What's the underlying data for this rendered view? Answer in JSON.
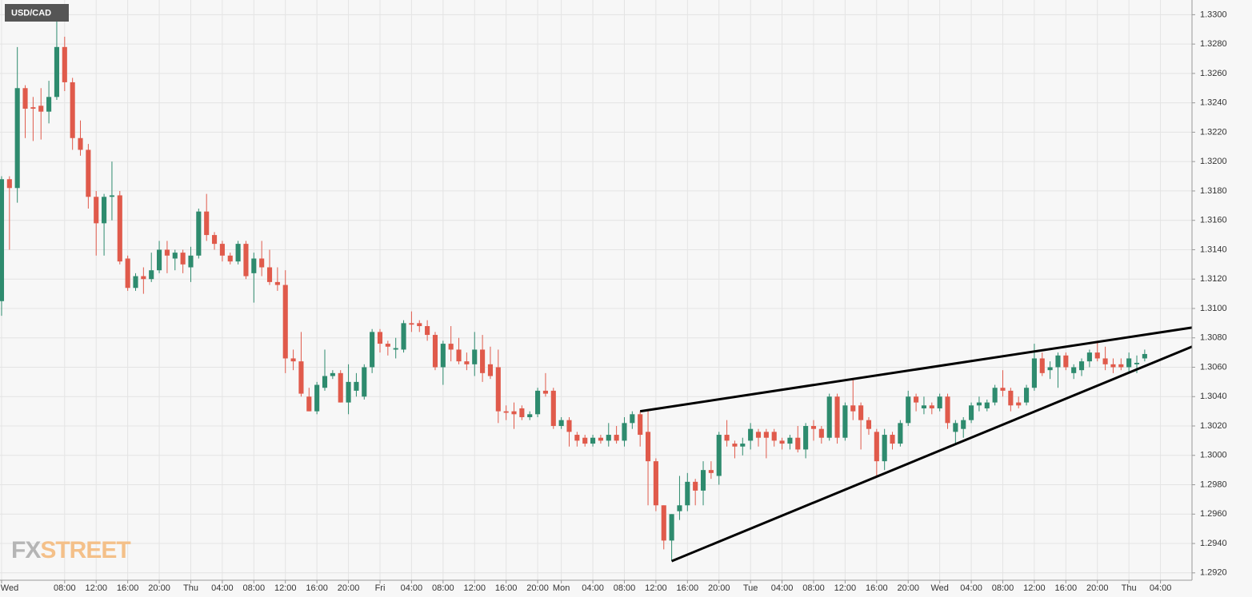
{
  "chart_data": {
    "type": "candlestick",
    "title": "USD/CAD",
    "logo": [
      "FX",
      "STREET"
    ],
    "up_color": "#2e8b6e",
    "down_color": "#e05a4b",
    "grid": true,
    "xlim": [
      -0.2,
      151
    ],
    "ylim": [
      1.2915,
      1.331
    ],
    "xticks": [
      {
        "value": 0,
        "label": "Wed"
      },
      {
        "value": 8,
        "label": "08:00"
      },
      {
        "value": 12,
        "label": "12:00"
      },
      {
        "value": 16,
        "label": "16:00"
      },
      {
        "value": 20,
        "label": "20:00"
      },
      {
        "value": 24,
        "label": "Thu"
      },
      {
        "value": 28,
        "label": "04:00"
      },
      {
        "value": 32,
        "label": "08:00"
      },
      {
        "value": 36,
        "label": "12:00"
      },
      {
        "value": 40,
        "label": "16:00"
      },
      {
        "value": 44,
        "label": "20:00"
      },
      {
        "value": 48,
        "label": "Fri"
      },
      {
        "value": 52,
        "label": "04:00"
      },
      {
        "value": 56,
        "label": "08:00"
      },
      {
        "value": 60,
        "label": "12:00"
      },
      {
        "value": 64,
        "label": "16:00"
      },
      {
        "value": 68,
        "label": "20:00"
      },
      {
        "value": 71,
        "label": "Mon"
      },
      {
        "value": 75,
        "label": "04:00"
      },
      {
        "value": 79,
        "label": "08:00"
      },
      {
        "value": 83,
        "label": "12:00"
      },
      {
        "value": 87,
        "label": "16:00"
      },
      {
        "value": 91,
        "label": "20:00"
      },
      {
        "value": 95,
        "label": "Tue"
      },
      {
        "value": 99,
        "label": "04:00"
      },
      {
        "value": 103,
        "label": "08:00"
      },
      {
        "value": 107,
        "label": "12:00"
      },
      {
        "value": 111,
        "label": "16:00"
      },
      {
        "value": 115,
        "label": "20:00"
      },
      {
        "value": 119,
        "label": "Wed"
      },
      {
        "value": 123,
        "label": "04:00"
      },
      {
        "value": 127,
        "label": "08:00"
      },
      {
        "value": 131,
        "label": "12:00"
      },
      {
        "value": 135,
        "label": "16:00"
      },
      {
        "value": 139,
        "label": "20:00"
      },
      {
        "value": 143,
        "label": "Thu"
      },
      {
        "value": 147,
        "label": "04:00"
      }
    ],
    "yticks": [
      {
        "value": 1.292,
        "label": "1.2920"
      },
      {
        "value": 1.294,
        "label": "1.2940"
      },
      {
        "value": 1.296,
        "label": "1.2960"
      },
      {
        "value": 1.298,
        "label": "1.2980"
      },
      {
        "value": 1.3,
        "label": "1.3000"
      },
      {
        "value": 1.302,
        "label": "1.3020"
      },
      {
        "value": 1.304,
        "label": "1.3040"
      },
      {
        "value": 1.306,
        "label": "1.3060"
      },
      {
        "value": 1.308,
        "label": "1.3080"
      },
      {
        "value": 1.31,
        "label": "1.3100"
      },
      {
        "value": 1.312,
        "label": "1.3120"
      },
      {
        "value": 1.314,
        "label": "1.3140"
      },
      {
        "value": 1.316,
        "label": "1.3160"
      },
      {
        "value": 1.318,
        "label": "1.3180"
      },
      {
        "value": 1.32,
        "label": "1.3200"
      },
      {
        "value": 1.322,
        "label": "1.3220"
      },
      {
        "value": 1.324,
        "label": "1.3240"
      },
      {
        "value": 1.326,
        "label": "1.3260"
      },
      {
        "value": 1.328,
        "label": "1.3280"
      },
      {
        "value": 1.33,
        "label": "1.3300"
      }
    ],
    "x": [
      0,
      1,
      2,
      3,
      4,
      5,
      6,
      7,
      8,
      9,
      10,
      11,
      12,
      13,
      14,
      15,
      16,
      17,
      18,
      19,
      20,
      21,
      22,
      23,
      24,
      25,
      26,
      27,
      28,
      29,
      30,
      31,
      32,
      33,
      34,
      35,
      36,
      37,
      38,
      39,
      40,
      41,
      42,
      43,
      44,
      45,
      46,
      47,
      48,
      49,
      50,
      51,
      52,
      53,
      54,
      55,
      56,
      57,
      58,
      59,
      60,
      61,
      62,
      63,
      64,
      65,
      66,
      67,
      68,
      69,
      70,
      71,
      72,
      73,
      74,
      75,
      76,
      77,
      78,
      79,
      80,
      81,
      82,
      83,
      84,
      85,
      86,
      87,
      88,
      89,
      90,
      91,
      92,
      93,
      94,
      95,
      96,
      97,
      98,
      99,
      100,
      101,
      102,
      103,
      104,
      105,
      106,
      107,
      108,
      109,
      110,
      111,
      112,
      113,
      114,
      115,
      116,
      117,
      118,
      119,
      120,
      121,
      122,
      123,
      124,
      125,
      126,
      127,
      128,
      129,
      130,
      131,
      132,
      133,
      134,
      135,
      136,
      137,
      138,
      139,
      140,
      141,
      142,
      143,
      144,
      145
    ],
    "open": [
      1.3105,
      1.3188,
      1.3182,
      1.325,
      1.3237,
      1.3238,
      1.3234,
      1.3244,
      1.3278,
      1.3254,
      1.3216,
      1.3208,
      1.3176,
      1.3158,
      1.3176,
      1.3177,
      1.3134,
      1.3114,
      1.3122,
      1.312,
      1.3126,
      1.314,
      1.3134,
      1.3138,
      1.3128,
      1.3136,
      1.3166,
      1.315,
      1.3144,
      1.3136,
      1.3132,
      1.3144,
      1.3124,
      1.3134,
      1.3128,
      1.3118,
      1.3116,
      1.3066,
      1.3064,
      1.304,
      1.303,
      1.3046,
      1.3054,
      1.3056,
      1.3036,
      1.3044,
      1.304,
      1.306,
      1.3084,
      1.3076,
      1.3072,
      1.3072,
      1.309,
      1.309,
      1.3088,
      1.3082,
      1.306,
      1.3076,
      1.3072,
      1.3064,
      1.3062,
      1.3072,
      1.3062,
      1.306,
      1.303,
      1.303,
      1.3032,
      1.3026,
      1.3028,
      1.3044,
      1.3044,
      1.302,
      1.3024,
      1.3014,
      1.3012,
      1.3008,
      1.3012,
      1.301,
      1.3014,
      1.301,
      1.3022,
      1.3028,
      1.3016,
      1.2996,
      1.2966,
      1.2942,
      1.2962,
      1.2966,
      1.2982,
      1.2976,
      1.299,
      1.2986,
      1.3014,
      1.3008,
      1.3006,
      1.301,
      1.3016,
      1.3016,
      1.3016,
      1.301,
      1.3008,
      1.3012,
      1.3004,
      1.302,
      1.3018,
      1.3012,
      1.304,
      1.3012,
      1.3034,
      1.3034,
      1.3024,
      1.3016,
      1.2996,
      1.3014,
      1.3008,
      1.3022,
      1.304,
      1.3032,
      1.3034,
      1.3032,
      1.304,
      1.3016,
      1.3018,
      1.3024,
      1.3034,
      1.3032,
      1.3036,
      1.3046,
      1.3044,
      1.3036,
      1.3036,
      1.3046,
      1.3066,
      1.3058,
      1.306,
      1.3068,
      1.3056,
      1.3058,
      1.3064,
      1.307,
      1.3066,
      1.3062,
      1.3062,
      1.306,
      1.3062,
      1.3066
    ],
    "high": [
      1.319,
      1.319,
      1.3278,
      1.3252,
      1.3244,
      1.325,
      1.3255,
      1.33,
      1.3285,
      1.3257,
      1.3228,
      1.3212,
      1.318,
      1.3178,
      1.32,
      1.318,
      1.3136,
      1.3124,
      1.3128,
      1.3138,
      1.3146,
      1.3146,
      1.314,
      1.314,
      1.3142,
      1.3168,
      1.3178,
      1.3152,
      1.3146,
      1.3138,
      1.3146,
      1.3146,
      1.3138,
      1.3146,
      1.314,
      1.3128,
      1.3126,
      1.3072,
      1.3084,
      1.3046,
      1.305,
      1.3072,
      1.3058,
      1.3058,
      1.3062,
      1.3056,
      1.3062,
      1.3086,
      1.3086,
      1.3078,
      1.308,
      1.3092,
      1.3098,
      1.3092,
      1.3092,
      1.3084,
      1.3078,
      1.3088,
      1.308,
      1.307,
      1.3084,
      1.3082,
      1.3074,
      1.3072,
      1.3034,
      1.3036,
      1.3034,
      1.303,
      1.3046,
      1.3056,
      1.3046,
      1.3026,
      1.3026,
      1.3016,
      1.3014,
      1.3014,
      1.3014,
      1.3022,
      1.302,
      1.3026,
      1.303,
      1.303,
      1.303,
      1.2998,
      1.2966,
      1.296,
      1.2986,
      1.2988,
      1.2984,
      1.2996,
      1.2996,
      1.3016,
      1.3024,
      1.301,
      1.3012,
      1.3022,
      1.3018,
      1.3018,
      1.3018,
      1.3012,
      1.3014,
      1.302,
      1.3022,
      1.3024,
      1.302,
      1.3042,
      1.3042,
      1.3036,
      1.3052,
      1.3036,
      1.3026,
      1.3018,
      1.3018,
      1.3016,
      1.3024,
      1.3044,
      1.3042,
      1.304,
      1.3036,
      1.3042,
      1.3042,
      1.3024,
      1.3026,
      1.3036,
      1.304,
      1.3038,
      1.3048,
      1.3058,
      1.3046,
      1.304,
      1.3048,
      1.3076,
      1.307,
      1.3064,
      1.307,
      1.307,
      1.3062,
      1.3066,
      1.3072,
      1.3078,
      1.3074,
      1.3066,
      1.3066,
      1.307,
      1.3068,
      1.3072
    ],
    "low": [
      1.3095,
      1.314,
      1.3172,
      1.3216,
      1.3214,
      1.3215,
      1.3226,
      1.3242,
      1.3248,
      1.3208,
      1.3204,
      1.3168,
      1.3136,
      1.3136,
      1.316,
      1.313,
      1.3112,
      1.3112,
      1.311,
      1.3118,
      1.3124,
      1.3124,
      1.3126,
      1.3124,
      1.3118,
      1.3134,
      1.3146,
      1.314,
      1.3132,
      1.313,
      1.313,
      1.312,
      1.3104,
      1.3122,
      1.3116,
      1.3112,
      1.3056,
      1.3058,
      1.304,
      1.303,
      1.3028,
      1.3044,
      1.3052,
      1.3036,
      1.3028,
      1.304,
      1.3038,
      1.3056,
      1.307,
      1.3068,
      1.3066,
      1.307,
      1.3084,
      1.3084,
      1.3078,
      1.3058,
      1.3048,
      1.3064,
      1.3062,
      1.3058,
      1.3054,
      1.305,
      1.3052,
      1.3022,
      1.3024,
      1.3018,
      1.3024,
      1.3024,
      1.3026,
      1.304,
      1.3018,
      1.3018,
      1.3006,
      1.3006,
      1.3006,
      1.3006,
      1.3008,
      1.3006,
      1.3008,
      1.3006,
      1.3018,
      1.3006,
      1.2966,
      1.2962,
      1.2936,
      1.2928,
      1.2956,
      1.2962,
      1.2966,
      1.2966,
      1.2984,
      1.298,
      1.3006,
      1.2998,
      1.3,
      1.3004,
      1.3006,
      1.2998,
      1.3006,
      1.3004,
      1.3004,
      1.3002,
      1.2998,
      1.301,
      1.3008,
      1.301,
      1.3008,
      1.301,
      1.3024,
      1.3004,
      1.3014,
      1.2986,
      1.299,
      1.3004,
      1.3006,
      1.302,
      1.303,
      1.3028,
      1.3028,
      1.303,
      1.3018,
      1.3008,
      1.3012,
      1.3022,
      1.303,
      1.303,
      1.3034,
      1.304,
      1.303,
      1.3032,
      1.3034,
      1.3044,
      1.3054,
      1.3052,
      1.3046,
      1.3058,
      1.3052,
      1.3054,
      1.306,
      1.3064,
      1.3058,
      1.3056,
      1.3058,
      1.3056,
      1.3056,
      1.3064
    ],
    "close": [
      1.3188,
      1.3182,
      1.325,
      1.3236,
      1.3236,
      1.3234,
      1.3244,
      1.3278,
      1.3254,
      1.3216,
      1.3208,
      1.3176,
      1.3158,
      1.3176,
      1.3177,
      1.3132,
      1.3114,
      1.3122,
      1.312,
      1.3126,
      1.314,
      1.3136,
      1.3138,
      1.313,
      1.3136,
      1.3166,
      1.315,
      1.3144,
      1.3136,
      1.3132,
      1.3144,
      1.3122,
      1.3134,
      1.3128,
      1.3118,
      1.3116,
      1.3066,
      1.3064,
      1.3042,
      1.303,
      1.3048,
      1.3054,
      1.3056,
      1.3036,
      1.305,
      1.305,
      1.306,
      1.3084,
      1.3076,
      1.3074,
      1.3073,
      1.309,
      1.3089,
      1.3088,
      1.3082,
      1.306,
      1.3076,
      1.3072,
      1.3064,
      1.3062,
      1.3072,
      1.3056,
      1.3054,
      1.303,
      1.3029,
      1.3028,
      1.3026,
      1.3028,
      1.3044,
      1.3042,
      1.302,
      1.3024,
      1.3016,
      1.301,
      1.3008,
      1.3012,
      1.301,
      1.3014,
      1.301,
      1.3022,
      1.3028,
      1.3014,
      1.2996,
      1.2966,
      1.2942,
      1.296,
      1.2966,
      1.2982,
      1.2976,
      1.299,
      1.2988,
      1.3014,
      1.301,
      1.3006,
      1.3008,
      1.3018,
      1.3012,
      1.3012,
      1.301,
      1.3008,
      1.3012,
      1.3004,
      1.302,
      1.3018,
      1.3012,
      1.304,
      1.3012,
      1.3034,
      1.303,
      1.3024,
      1.3018,
      1.2996,
      1.3014,
      1.3008,
      1.3022,
      1.304,
      1.3036,
      1.3034,
      1.3032,
      1.304,
      1.3022,
      1.3022,
      1.3024,
      1.3034,
      1.3036,
      1.3036,
      1.3046,
      1.3044,
      1.3034,
      1.3034,
      1.3046,
      1.3066,
      1.3056,
      1.306,
      1.3068,
      1.306,
      1.306,
      1.3064,
      1.307,
      1.3066,
      1.3062,
      1.306,
      1.306,
      1.3066,
      1.3063,
      1.3069
    ],
    "trendlines": [
      {
        "x": [
          81,
          151
        ],
        "y": [
          1.303,
          1.3087
        ]
      },
      {
        "x": [
          85,
          151
        ],
        "y": [
          1.2928,
          1.3074
        ]
      }
    ]
  }
}
